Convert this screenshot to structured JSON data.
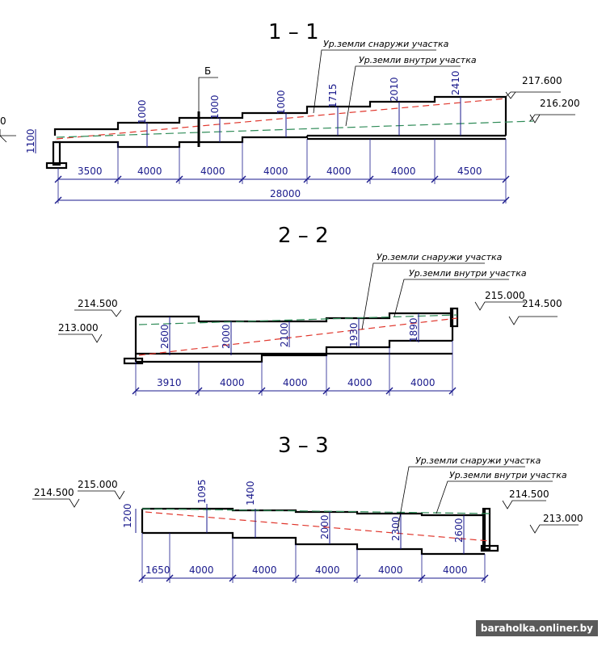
{
  "sections": [
    {
      "title": "1 – 1",
      "outside_label": "Ур.земли снаружи участка",
      "inside_label": "Ур.земли внутри участка",
      "marker": "Б",
      "levels": [
        "217.600",
        "216.200"
      ],
      "left_level_fragment": "0",
      "heights": [
        "1100",
        "1000",
        "1000",
        "1000",
        "1715",
        "2010",
        "2410"
      ],
      "spans": [
        "3500",
        "4000",
        "4000",
        "4000",
        "4000",
        "4000",
        "4500"
      ],
      "total": "28000"
    },
    {
      "title": "2 – 2",
      "outside_label": "Ур.земли снаружи участка",
      "inside_label": "Ур.земли внутри участка",
      "levels": [
        "214.500",
        "213.000",
        "215.000",
        "214.500"
      ],
      "heights": [
        "2600",
        "2000",
        "2100",
        "1930",
        "1890"
      ],
      "spans": [
        "3910",
        "4000",
        "4000",
        "4000",
        "4000"
      ]
    },
    {
      "title": "3 – 3",
      "outside_label": "Ур.земли снаружи участка",
      "inside_label": "Ур.земли внутри участка",
      "levels": [
        "214.500",
        "215.000",
        "214.500",
        "213.000"
      ],
      "heights": [
        "1200",
        "1095",
        "1400",
        "2000",
        "2300",
        "2600"
      ],
      "spans": [
        "1650",
        "4000",
        "4000",
        "4000",
        "4000",
        "4000"
      ]
    }
  ],
  "watermark": "baraholka.onliner.by"
}
